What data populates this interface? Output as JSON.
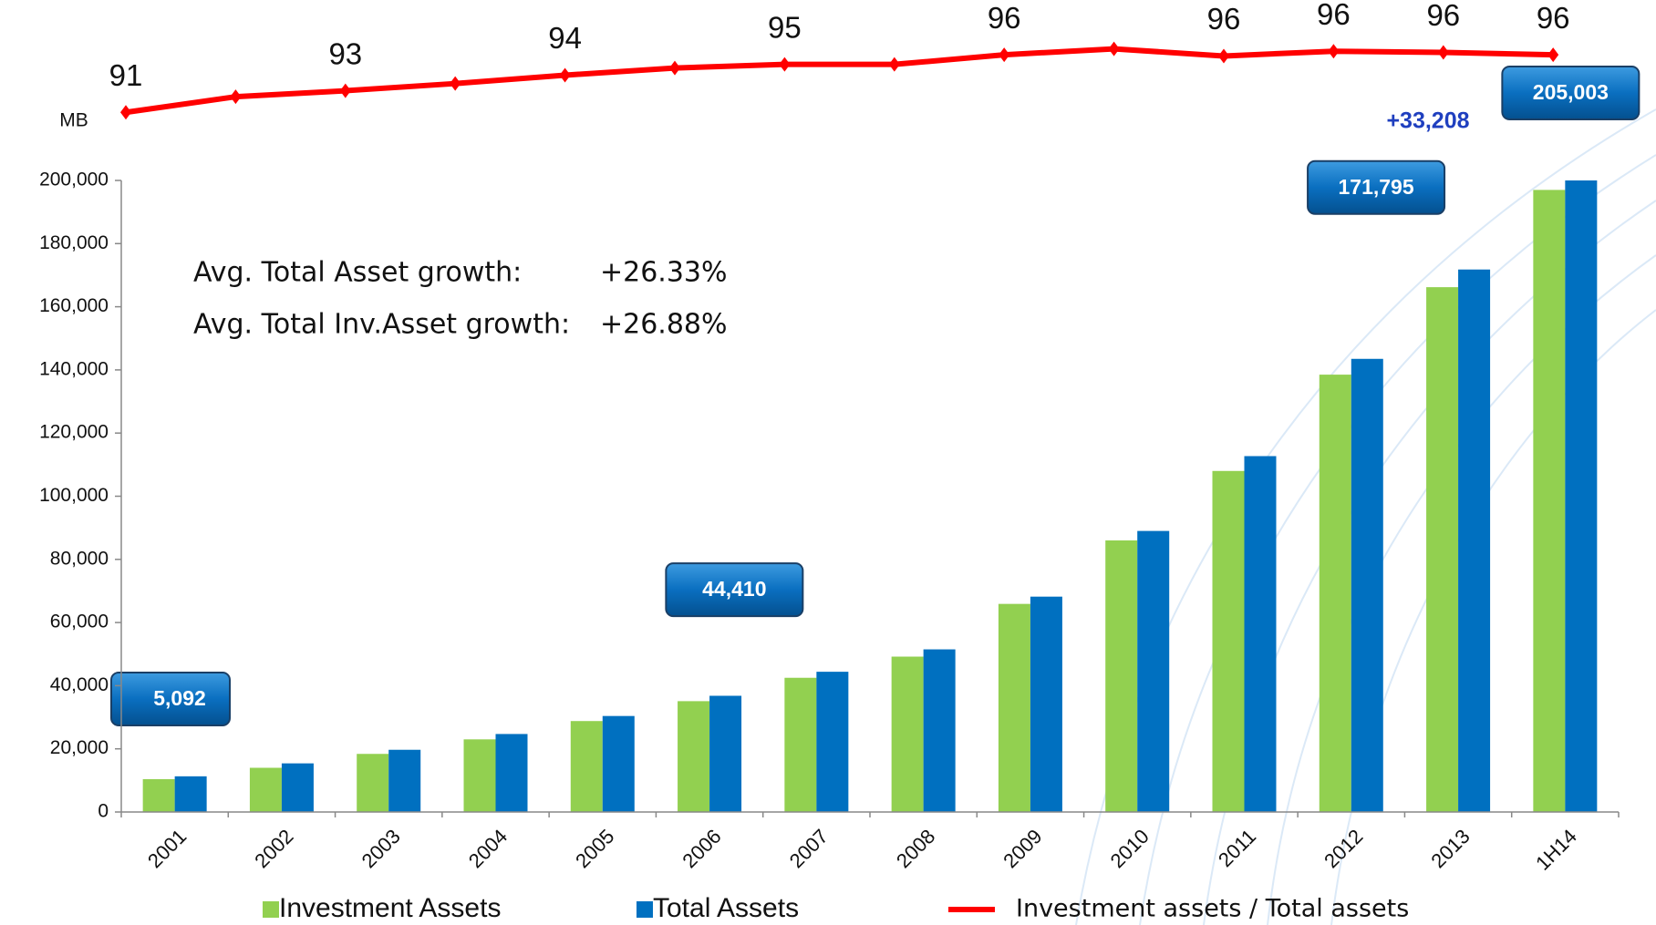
{
  "chart_data": {
    "type": "bar",
    "y_label": "MB",
    "categories": [
      "2001",
      "2002",
      "2003",
      "2004",
      "2005",
      "2006",
      "2007",
      "2008",
      "2009",
      "2010",
      "2011",
      "2012",
      "2013",
      "1H14"
    ],
    "series": [
      {
        "name": "Investment Assets",
        "color": "#92d050",
        "values": [
          10400,
          14000,
          18400,
          23000,
          28800,
          35100,
          42500,
          49200,
          65900,
          86000,
          108000,
          138500,
          166200,
          197000
        ]
      },
      {
        "name": "Total Assets",
        "color": "#0070c0",
        "values": [
          11300,
          15400,
          19700,
          24700,
          30400,
          36800,
          44410,
          51500,
          68200,
          89000,
          112700,
          143500,
          171795,
          205003
        ],
        "value_labels": [
          null,
          null,
          null,
          null,
          null,
          null,
          "44,410",
          null,
          null,
          null,
          null,
          null,
          "171,795",
          "205,003"
        ]
      },
      {
        "name": "Investment assets / Total assets",
        "color": "#ff0000",
        "type": "line",
        "axis": "y2",
        "values": [
          91.2,
          92.5,
          93.0,
          93.6,
          94.3,
          94.9,
          95.2,
          95.2,
          96.0,
          96.5,
          95.9,
          96.3,
          96.2,
          96.0
        ],
        "value_labels": [
          "91",
          null,
          "93",
          null,
          "94",
          null,
          "95",
          null,
          "96",
          null,
          "96",
          "96",
          "96",
          "96"
        ]
      }
    ],
    "ylim": [
      0,
      200000
    ],
    "yticks": [
      0,
      {
        "value": 20000,
        "label": "20,000"
      },
      {
        "value": 40000,
        "label": "40,000"
      },
      {
        "value": 60000,
        "label": "60,000"
      },
      {
        "value": 80000,
        "label": "80,000"
      },
      {
        "value": 100000,
        "label": "100,000"
      },
      {
        "value": 120000,
        "label": "120,000"
      },
      {
        "value": 140000,
        "label": "140,000"
      },
      {
        "value": 160000,
        "label": "160,000"
      },
      {
        "value": 180000,
        "label": "180,000"
      },
      {
        "value": 200000,
        "label": "200,000"
      }
    ],
    "y2lim": [
      90,
      97
    ],
    "annotations": [
      "5,092",
      "+33,208"
    ],
    "growth": [
      {
        "label": "Avg. Total Asset  growth:",
        "value": "+26.33%"
      },
      {
        "label": "Avg. Total Inv.Asset  growth:",
        "value": "+26.88%"
      }
    ]
  }
}
